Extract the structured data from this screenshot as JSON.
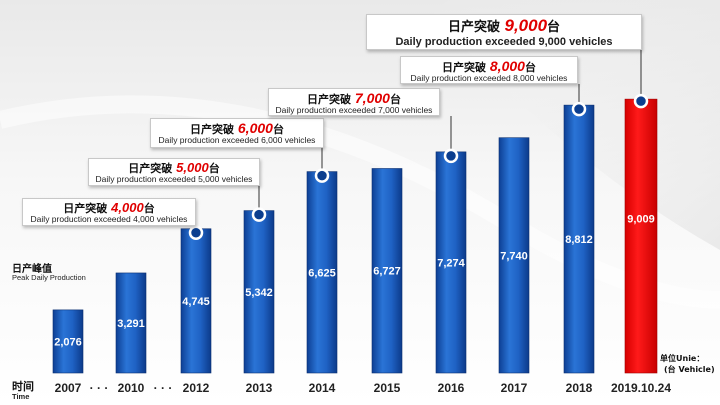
{
  "chart_data": {
    "type": "bar",
    "categories": [
      "2007",
      "2010",
      "2012",
      "2013",
      "2014",
      "2015",
      "2016",
      "2017",
      "2018",
      "2019.10.24"
    ],
    "values": [
      2076,
      3291,
      4745,
      5342,
      6625,
      6727,
      7274,
      7740,
      8812,
      9009
    ],
    "value_labels": [
      "2,076",
      "3,291",
      "4,745",
      "5,342",
      "6,625",
      "6,727",
      "7,274",
      "7,740",
      "8,812",
      "9,009"
    ],
    "ylim": [
      0,
      10000
    ],
    "grid": false,
    "highlight_index": 9,
    "milestone_indices": [
      2,
      3,
      4,
      6,
      8,
      9
    ],
    "colors": {
      "bar": "#1a5cbf",
      "bar_highlight": "#ff0000",
      "milestone_number": "#e00000"
    },
    "ylabel_cn": "日产峰值",
    "ylabel_en": "Peak Daily Production",
    "xlabel_cn": "时间",
    "xlabel_en": "Time",
    "unit_line1": "单位Unie：",
    "unit_line2": "(台 Vehicle)",
    "axis_break": "· · ·",
    "annotations": [
      {
        "cn_prefix": "日产突破",
        "number": "4,000",
        "cn_suffix": "台",
        "en": "Daily production exceeded 4,000 vehicles"
      },
      {
        "cn_prefix": "日产突破",
        "number": "5,000",
        "cn_suffix": "台",
        "en": "Daily production exceeded 5,000 vehicles"
      },
      {
        "cn_prefix": "日产突破",
        "number": "6,000",
        "cn_suffix": "台",
        "en": "Daily production exceeded 6,000 vehicles"
      },
      {
        "cn_prefix": "日产突破",
        "number": "7,000",
        "cn_suffix": "台",
        "en": "Daily production exceeded 7,000 vehicles"
      },
      {
        "cn_prefix": "日产突破",
        "number": "8,000",
        "cn_suffix": "台",
        "en": "Daily production exceeded 8,000 vehicles"
      },
      {
        "cn_prefix": "日产突破",
        "number": "9,000",
        "cn_suffix": "台",
        "en": "Daily production exceeded 9,000 vehicles"
      }
    ]
  }
}
